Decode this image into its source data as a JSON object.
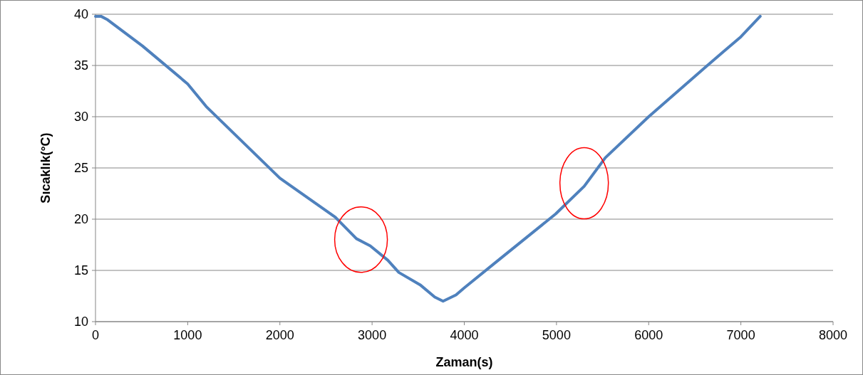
{
  "chart_data": {
    "type": "line",
    "xlabel": "Zaman(s)",
    "ylabel": "Sıcaklık(°C)",
    "x": [
      0,
      60,
      124,
      510,
      1000,
      1200,
      2000,
      2600,
      2830,
      2980,
      3170,
      3290,
      3520,
      3680,
      3770,
      3910,
      4000,
      4370,
      4990,
      5300,
      5530,
      6000,
      6610,
      7000,
      7210
    ],
    "series": [
      {
        "color": "#4f81bd",
        "values": [
          39.8,
          39.8,
          39.5,
          36.9,
          33.2,
          31.0,
          24.0,
          20.2,
          18.1,
          17.4,
          16.0,
          14.8,
          13.6,
          12.4,
          12.0,
          12.6,
          13.3,
          16.0,
          20.5,
          23.2,
          26.0,
          30.0,
          34.8,
          37.8,
          39.8
        ]
      }
    ],
    "xlim": [
      0,
      8000
    ],
    "xticks": [
      0,
      1000,
      2000,
      3000,
      4000,
      5000,
      6000,
      7000,
      8000
    ],
    "ylim": [
      10,
      40
    ],
    "yticks": [
      10,
      15,
      20,
      25,
      30,
      35,
      40
    ],
    "grid": "y",
    "marker": "none",
    "line_style": "solid"
  }
}
